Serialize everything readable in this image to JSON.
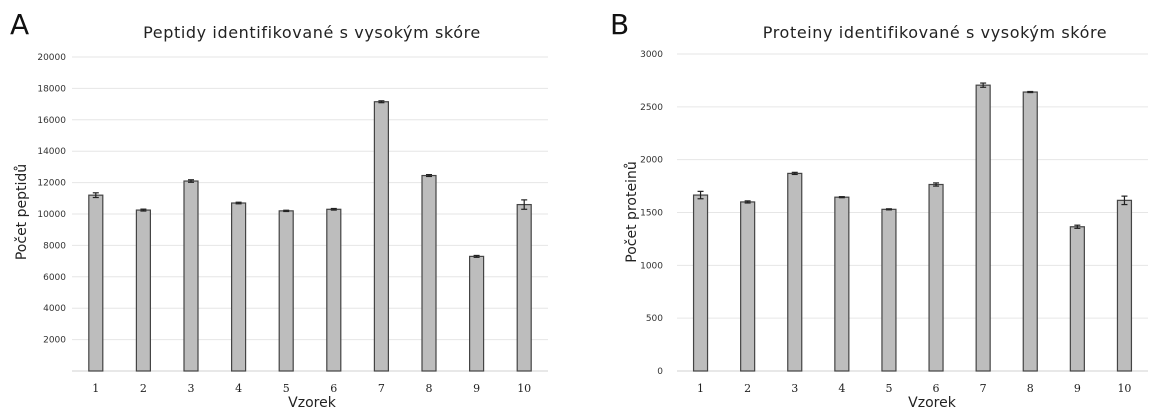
{
  "chart_data": [
    {
      "panel": "A",
      "type": "bar",
      "title": "Peptidy identifikované s vysokým skóre",
      "xlabel": "Vzorek",
      "ylabel": "Počet peptidů",
      "categories": [
        "1",
        "2",
        "3",
        "4",
        "5",
        "6",
        "7",
        "8",
        "9",
        "10"
      ],
      "values": [
        11200,
        10250,
        12100,
        10700,
        10200,
        10300,
        17150,
        12450,
        7300,
        10600
      ],
      "errors": [
        150,
        60,
        80,
        50,
        40,
        50,
        60,
        60,
        60,
        300
      ],
      "ylim": [
        0,
        20000
      ],
      "yticks": [
        "2000",
        "4000",
        "6000",
        "8000",
        "10000",
        "12000",
        "14000",
        "16000",
        "18000",
        "20000"
      ],
      "grid": true,
      "legend": "none"
    },
    {
      "panel": "B",
      "type": "bar",
      "title": "Proteiny identifikované s vysokým skóre",
      "xlabel": "Vzorek",
      "ylabel": "Počet proteinů",
      "categories": [
        "1",
        "2",
        "3",
        "4",
        "5",
        "6",
        "7",
        "8",
        "9",
        "10"
      ],
      "values": [
        1665,
        1600,
        1870,
        1645,
        1530,
        1765,
        2705,
        2640,
        1365,
        1615
      ],
      "errors": [
        35,
        10,
        10,
        5,
        5,
        15,
        20,
        5,
        15,
        40
      ],
      "ylim": [
        0,
        3000
      ],
      "yticks": [
        "0",
        "500",
        "1000",
        "1500",
        "2000",
        "2500",
        "3000"
      ],
      "grid": true,
      "legend": "none"
    }
  ]
}
